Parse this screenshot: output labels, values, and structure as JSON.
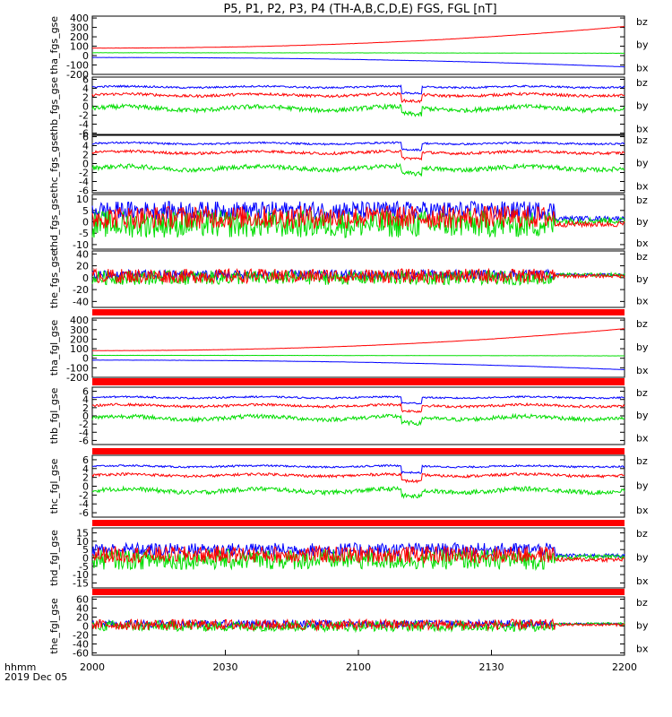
{
  "title": "P5, P1, P2, P3, P4 (TH-A,B,C,D,E) FGS, FGL [nT]",
  "colors": {
    "bx": "#0000ff",
    "by": "#00dd00",
    "bz": "#ff0000",
    "bar": "#ff0000",
    "axis": "#000000"
  },
  "x_axis": {
    "tick_labels": [
      "2000",
      "2030",
      "2100",
      "2130",
      "2200"
    ],
    "label_line1": "hhmm",
    "label_line2": "2019 Dec 05"
  },
  "chart_data": [
    {
      "type": "line",
      "ylabel": "tha_fgs_gse",
      "yticks": [
        400,
        300,
        200,
        100,
        0,
        -100,
        -200
      ],
      "ylim": [
        -200,
        420
      ],
      "series": [
        {
          "name": "bz",
          "shape": "ramp",
          "base": 80,
          "end": 310,
          "noise": 2
        },
        {
          "name": "by",
          "shape": "ramp",
          "base": 30,
          "end": 25,
          "noise": 2
        },
        {
          "name": "bx",
          "shape": "ramp",
          "base": -20,
          "end": -120,
          "noise": 2
        }
      ]
    },
    {
      "type": "line",
      "ylabel": "thb_fgs_gse",
      "yticks": [
        6,
        4,
        2,
        0,
        -2,
        -4,
        -6
      ],
      "ylim": [
        -6.5,
        6.5
      ],
      "series": [
        {
          "name": "bz",
          "shape": "flat",
          "base": 2.5,
          "noise": 0.6
        },
        {
          "name": "by",
          "shape": "flat",
          "base": -0.5,
          "noise": 1.0
        },
        {
          "name": "bx",
          "shape": "flat",
          "base": 4.3,
          "noise": 0.4
        }
      ]
    },
    {
      "type": "line",
      "ylabel": "thc_fgs_gse",
      "yticks": [
        6,
        4,
        2,
        0,
        -2,
        -4,
        -6
      ],
      "ylim": [
        -6.5,
        6.5
      ],
      "series": [
        {
          "name": "bz",
          "shape": "flat",
          "base": 2.5,
          "noise": 0.6
        },
        {
          "name": "by",
          "shape": "flat",
          "base": -1.0,
          "noise": 1.0
        },
        {
          "name": "bx",
          "shape": "flat",
          "base": 4.5,
          "noise": 0.4
        }
      ]
    },
    {
      "type": "line",
      "ylabel": "thd_fgs_gse",
      "yticks": [
        10,
        5,
        0,
        -5,
        -10
      ],
      "ylim": [
        -12,
        12
      ],
      "series": [
        {
          "name": "bx",
          "shape": "turb",
          "base": 5,
          "noise": 4,
          "calm": 1.5
        },
        {
          "name": "by",
          "shape": "turb",
          "base": -1,
          "noise": 6,
          "calm": 0.5
        },
        {
          "name": "bz",
          "shape": "turb",
          "base": 2,
          "noise": 5,
          "calm": -1
        }
      ]
    },
    {
      "type": "line",
      "ylabel": "the_fgs_gse",
      "yticks": [
        40,
        20,
        0,
        -20,
        -40
      ],
      "ylim": [
        -50,
        45
      ],
      "series": [
        {
          "name": "bx",
          "shape": "turb",
          "base": 5,
          "noise": 8,
          "calm": 5
        },
        {
          "name": "by",
          "shape": "turb",
          "base": 0,
          "noise": 12,
          "calm": 5
        },
        {
          "name": "bz",
          "shape": "turb",
          "base": 3,
          "noise": 12,
          "calm": 3
        }
      ]
    },
    {
      "type": "line",
      "ylabel": "tha_fgl_gse",
      "yticks": [
        400,
        300,
        200,
        100,
        0,
        -100,
        -200
      ],
      "ylim": [
        -200,
        420
      ],
      "series": [
        {
          "name": "bz",
          "shape": "ramp",
          "base": 80,
          "end": 310,
          "noise": 2
        },
        {
          "name": "by",
          "shape": "ramp",
          "base": 30,
          "end": 25,
          "noise": 2
        },
        {
          "name": "bx",
          "shape": "ramp",
          "base": -20,
          "end": -120,
          "noise": 2
        }
      ]
    },
    {
      "type": "line",
      "ylabel": "thb_fgl_gse",
      "yticks": [
        6,
        4,
        2,
        0,
        -2,
        -4,
        -6
      ],
      "ylim": [
        -7,
        7
      ],
      "series": [
        {
          "name": "bz",
          "shape": "flat",
          "base": 2.5,
          "noise": 0.6
        },
        {
          "name": "by",
          "shape": "flat",
          "base": -0.5,
          "noise": 1.0
        },
        {
          "name": "bx",
          "shape": "flat",
          "base": 4.5,
          "noise": 0.4
        }
      ]
    },
    {
      "type": "line",
      "ylabel": "thc_fgl_gse",
      "yticks": [
        6,
        4,
        2,
        0,
        -2,
        -4,
        -6
      ],
      "ylim": [
        -7,
        7
      ],
      "series": [
        {
          "name": "bz",
          "shape": "flat",
          "base": 2.5,
          "noise": 0.6
        },
        {
          "name": "by",
          "shape": "flat",
          "base": -1.0,
          "noise": 1.0
        },
        {
          "name": "bx",
          "shape": "flat",
          "base": 4.5,
          "noise": 0.4
        }
      ]
    },
    {
      "type": "line",
      "ylabel": "thd_fgl_gse",
      "yticks": [
        15,
        10,
        5,
        0,
        -5,
        -10,
        -15
      ],
      "ylim": [
        -18,
        18
      ],
      "series": [
        {
          "name": "bx",
          "shape": "turb",
          "base": 5,
          "noise": 4,
          "calm": 1.5
        },
        {
          "name": "by",
          "shape": "turb",
          "base": -1,
          "noise": 6,
          "calm": 0.5
        },
        {
          "name": "bz",
          "shape": "turb",
          "base": 2,
          "noise": 5,
          "calm": -1
        }
      ]
    },
    {
      "type": "line",
      "ylabel": "the_fgl_gse",
      "yticks": [
        60,
        40,
        20,
        0,
        -20,
        -40,
        -60
      ],
      "ylim": [
        -65,
        65
      ],
      "series": [
        {
          "name": "bx",
          "shape": "turb",
          "base": 5,
          "noise": 8,
          "calm": 5
        },
        {
          "name": "by",
          "shape": "turb",
          "base": 0,
          "noise": 12,
          "calm": 5
        },
        {
          "name": "bz",
          "shape": "turb",
          "base": 3,
          "noise": 12,
          "calm": 3
        }
      ]
    }
  ]
}
